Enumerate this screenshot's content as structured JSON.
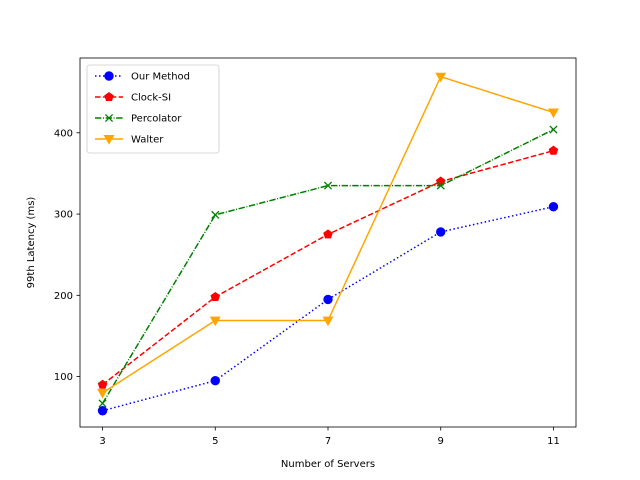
{
  "chart_data": {
    "type": "line",
    "title": "",
    "xlabel": "Number of Servers",
    "ylabel": "99th Latency (ms)",
    "x": [
      3,
      5,
      7,
      9,
      11
    ],
    "xticks": [
      "3",
      "5",
      "7",
      "9",
      "11"
    ],
    "yticks": [
      "100",
      "200",
      "300",
      "400"
    ],
    "xlim": [
      2.6,
      11.4
    ],
    "ylim": [
      38,
      492
    ],
    "grid": false,
    "legend_position": "upper-left",
    "series": [
      {
        "name": "Our Method",
        "values": [
          58,
          95,
          195,
          278,
          309
        ],
        "color": "#0000ff",
        "line_style": "dotted",
        "marker": "circle"
      },
      {
        "name": "Clock-SI",
        "values": [
          90,
          198,
          275,
          340,
          378
        ],
        "color": "#ff0000",
        "line_style": "dashed",
        "marker": "pentagon"
      },
      {
        "name": "Percolator",
        "values": [
          67,
          299,
          335,
          335,
          404
        ],
        "color": "#008000",
        "line_style": "dash-dot",
        "marker": "x"
      },
      {
        "name": "Walter",
        "values": [
          80,
          169,
          169,
          469,
          425
        ],
        "color": "#ffa500",
        "line_style": "solid",
        "marker": "triangle-down"
      }
    ]
  }
}
